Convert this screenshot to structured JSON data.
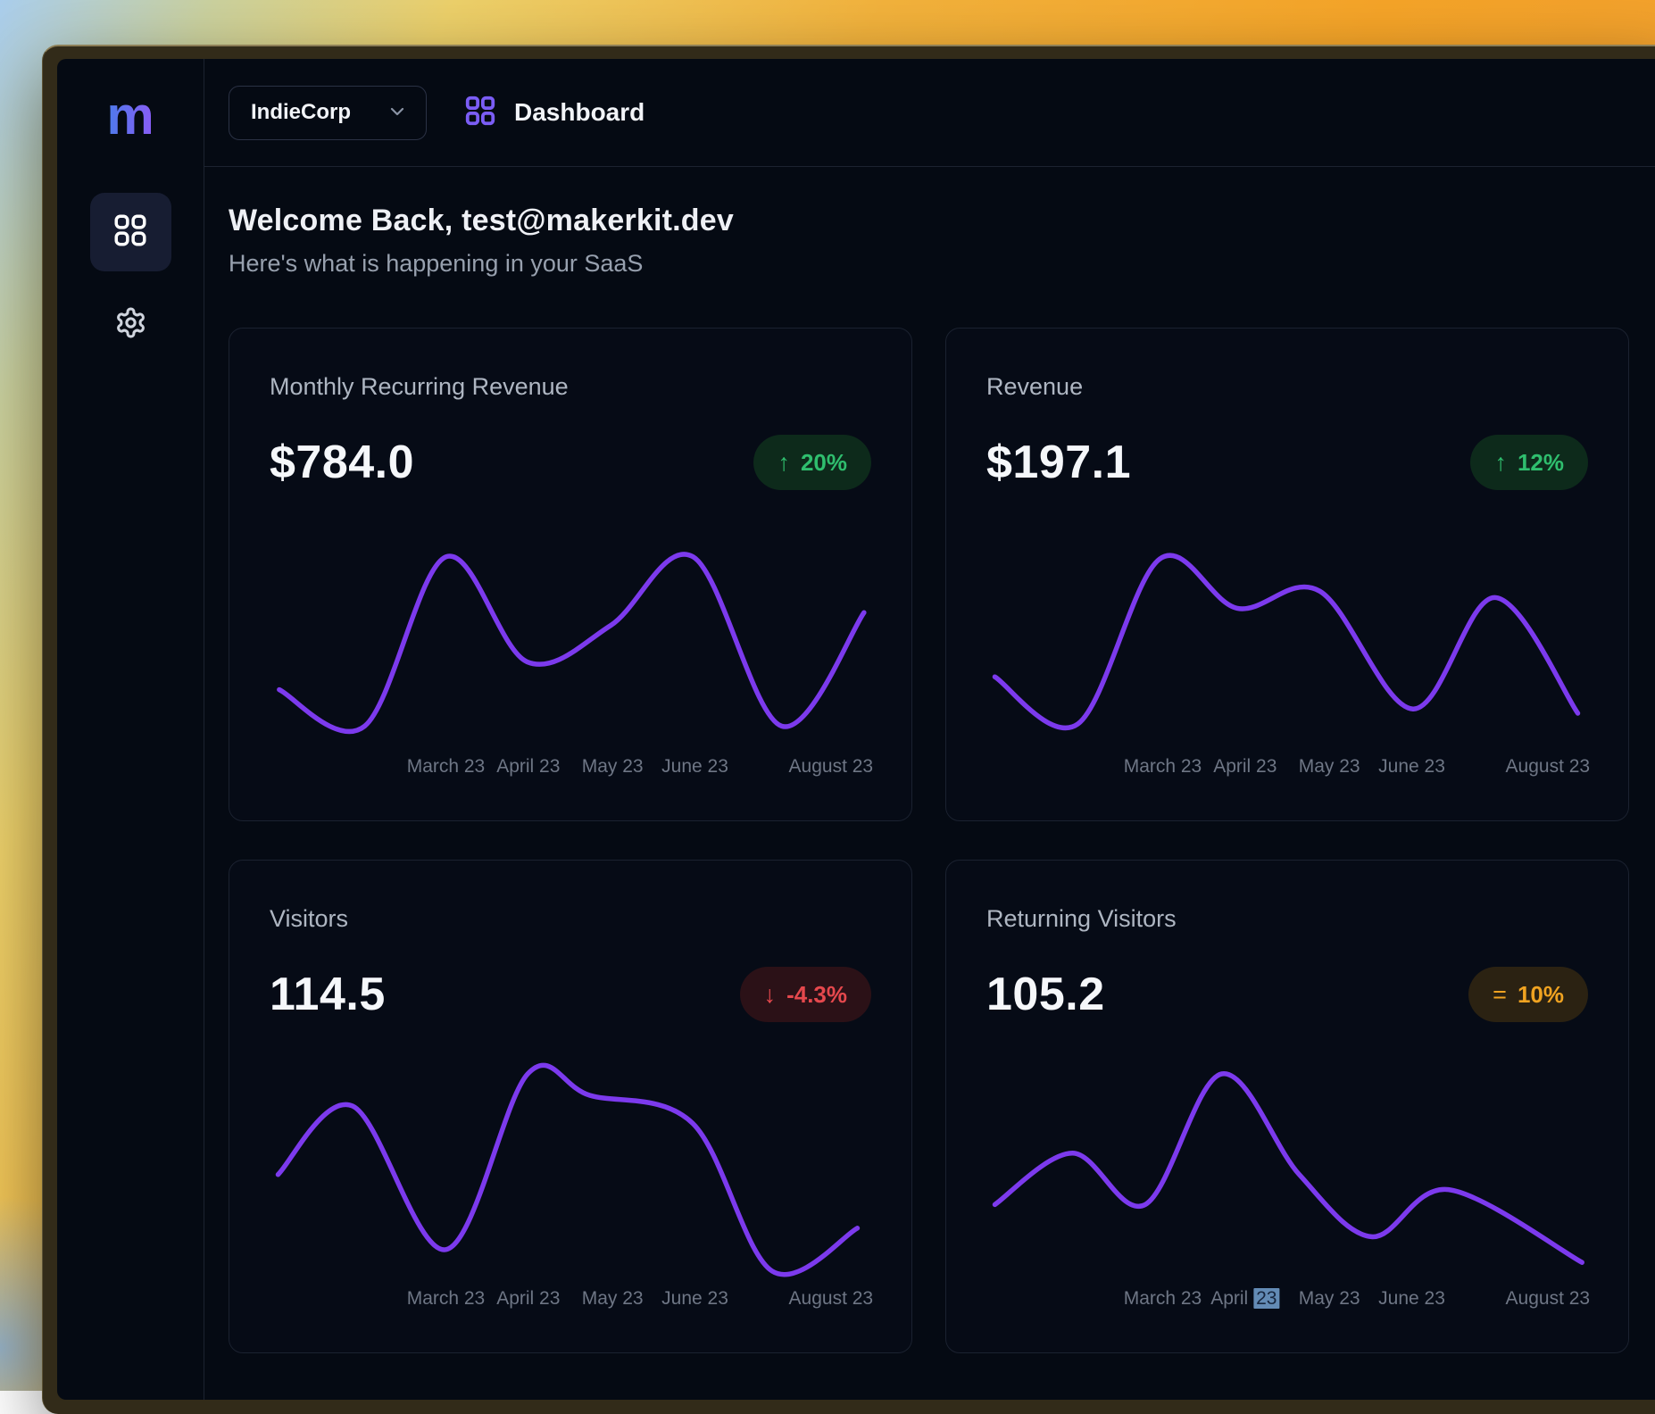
{
  "topbar": {
    "org_name": "IndieCorp",
    "page_title": "Dashboard"
  },
  "sidebar": {
    "logo_text": "m"
  },
  "welcome": {
    "title": "Welcome Back, test@makerkit.dev",
    "subtitle": "Here's what is happening in your SaaS"
  },
  "colors": {
    "line": "#7c3aed",
    "up_fg": "#2fbe6e",
    "up_bg": "#0d2a1b",
    "down_fg": "#e5484d",
    "down_bg": "#2b1117",
    "flat_fg": "#f0a321",
    "flat_bg": "#2b2212"
  },
  "chart_data": [
    {
      "type": "line",
      "title": "Monthly Recurring Revenue",
      "value": "$784.0",
      "badge": {
        "direction": "up",
        "icon": "arrow-up-icon",
        "label": "20%",
        "fg": "#2fbe6e",
        "bg": "#0d2a1b"
      },
      "line_color": "#7c3aed",
      "x_ticks": [
        {
          "text": "March 23",
          "x_pct": 29.3
        },
        {
          "text": "April 23",
          "x_pct": 43.0
        },
        {
          "text": "May 23",
          "x_pct": 57.0
        },
        {
          "text": "June 23",
          "x_pct": 70.7
        },
        {
          "text": "August 23",
          "x_pct": 93.3
        }
      ],
      "points_pct": [
        [
          1.6,
          74
        ],
        [
          15.8,
          91
        ],
        [
          29.3,
          12
        ],
        [
          42.8,
          61
        ],
        [
          56.7,
          44
        ],
        [
          70.4,
          12
        ],
        [
          85.1,
          91
        ],
        [
          98.8,
          38
        ]
      ]
    },
    {
      "type": "line",
      "title": "Revenue",
      "value": "$197.1",
      "badge": {
        "direction": "up",
        "icon": "arrow-up-icon",
        "label": "12%",
        "fg": "#2fbe6e",
        "bg": "#0d2a1b"
      },
      "line_color": "#7c3aed",
      "x_ticks": [
        {
          "text": "March 23",
          "x_pct": 29.3
        },
        {
          "text": "April 23",
          "x_pct": 43.0
        },
        {
          "text": "May 23",
          "x_pct": 57.0
        },
        {
          "text": "June 23",
          "x_pct": 70.7
        },
        {
          "text": "August 23",
          "x_pct": 93.3
        }
      ],
      "points_pct": [
        [
          1.4,
          68
        ],
        [
          15.2,
          90
        ],
        [
          28.8,
          13
        ],
        [
          41.7,
          36
        ],
        [
          55.4,
          28
        ],
        [
          70.9,
          83
        ],
        [
          84.5,
          31
        ],
        [
          98.3,
          85
        ]
      ]
    },
    {
      "type": "line",
      "title": "Visitors",
      "value": "114.5",
      "badge": {
        "direction": "down",
        "icon": "arrow-down-icon",
        "label": "-4.3%",
        "fg": "#e5484d",
        "bg": "#2b1117"
      },
      "line_color": "#7c3aed",
      "x_ticks": [
        {
          "text": "March 23",
          "x_pct": 29.3
        },
        {
          "text": "April 23",
          "x_pct": 43.0
        },
        {
          "text": "May 23",
          "x_pct": 57.0
        },
        {
          "text": "June 23",
          "x_pct": 70.7
        },
        {
          "text": "August 23",
          "x_pct": 93.3
        }
      ],
      "points_pct": [
        [
          1.4,
          52
        ],
        [
          13.8,
          20
        ],
        [
          29.3,
          87
        ],
        [
          42.9,
          5
        ],
        [
          53.2,
          15
        ],
        [
          70.3,
          28
        ],
        [
          83.5,
          97
        ],
        [
          97.7,
          77
        ]
      ]
    },
    {
      "type": "line",
      "title": "Returning Visitors",
      "value": "105.2",
      "badge": {
        "direction": "flat",
        "icon": "equals-icon",
        "label": "10%",
        "fg": "#f0a321",
        "bg": "#2b2212"
      },
      "line_color": "#7c3aed",
      "x_ticks": [
        {
          "text": "March 23",
          "x_pct": 29.3
        },
        {
          "text": "April 23",
          "x_pct": 43.0,
          "selected_part": "23"
        },
        {
          "text": "May 23",
          "x_pct": 57.0
        },
        {
          "text": "June 23",
          "x_pct": 70.7
        },
        {
          "text": "August 23",
          "x_pct": 93.3
        }
      ],
      "points_pct": [
        [
          1.4,
          66
        ],
        [
          14.3,
          42
        ],
        [
          26.4,
          66
        ],
        [
          39.1,
          5
        ],
        [
          52,
          52
        ],
        [
          64,
          81
        ],
        [
          76.8,
          59
        ],
        [
          99,
          93
        ]
      ]
    }
  ]
}
